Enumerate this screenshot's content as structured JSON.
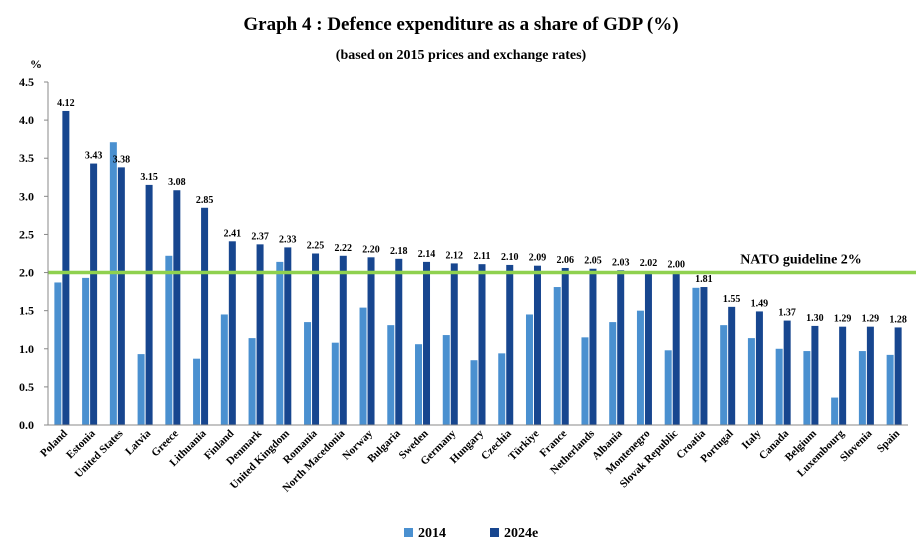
{
  "chart_data": {
    "type": "bar",
    "title": "Graph 4 : Defence expenditure as a share of GDP (%)",
    "subtitle": "(based on 2015 prices and exchange rates)",
    "ylabel": "%",
    "ylim": [
      0,
      4.5
    ],
    "yticks": [
      "0.0",
      "0.5",
      "1.0",
      "1.5",
      "2.0",
      "2.5",
      "3.0",
      "3.5",
      "4.0",
      "4.5"
    ],
    "categories": [
      "Poland",
      "Estonia",
      "United States",
      "Latvia",
      "Greece",
      "Lithuania",
      "Finland",
      "Denmark",
      "United Kingdom",
      "Romania",
      "North Macedonia",
      "Norway",
      "Bulgaria",
      "Sweden",
      "Germany",
      "Hungary",
      "Czechia",
      "Türkiye",
      "France",
      "Netherlands",
      "Albania",
      "Montenegro",
      "Slovak Republic",
      "Croatia",
      "Portugal",
      "Italy",
      "Canada",
      "Belgium",
      "Luxembourg",
      "Slovenia",
      "Spain"
    ],
    "series": [
      {
        "name": "2014",
        "color": "#4a90d0",
        "values": [
          1.87,
          1.93,
          3.71,
          0.93,
          2.22,
          0.87,
          1.45,
          1.14,
          2.14,
          1.35,
          1.08,
          1.54,
          1.31,
          1.06,
          1.18,
          0.85,
          0.94,
          1.45,
          1.81,
          1.15,
          1.35,
          1.5,
          0.98,
          1.8,
          1.31,
          1.14,
          1.0,
          0.97,
          0.36,
          0.97,
          0.92
        ]
      },
      {
        "name": "2024e",
        "color": "#17468f",
        "values": [
          4.12,
          3.43,
          3.38,
          3.15,
          3.08,
          2.85,
          2.41,
          2.37,
          2.33,
          2.25,
          2.22,
          2.2,
          2.18,
          2.14,
          2.12,
          2.11,
          2.1,
          2.09,
          2.06,
          2.05,
          2.03,
          2.02,
          2.0,
          1.81,
          1.55,
          1.49,
          1.37,
          1.3,
          1.29,
          1.29,
          1.28
        ],
        "labels": [
          "4.12",
          "3.43",
          "3.38",
          "3.15",
          "3.08",
          "2.85",
          "2.41",
          "2.37",
          "2.33",
          "2.25",
          "2.22",
          "2.20",
          "2.18",
          "2.14",
          "2.12",
          "2.11",
          "2.10",
          "2.09",
          "2.06",
          "2.05",
          "2.03",
          "2.02",
          "2.00",
          "1.81",
          "1.55",
          "1.49",
          "1.37",
          "1.30",
          "1.29",
          "1.29",
          "1.28"
        ]
      }
    ],
    "reference_line": {
      "value": 2.0,
      "label": "NATO guideline 2%",
      "color": "#8fd14f"
    },
    "legend": {
      "position": "bottom-center"
    },
    "grid": false
  }
}
